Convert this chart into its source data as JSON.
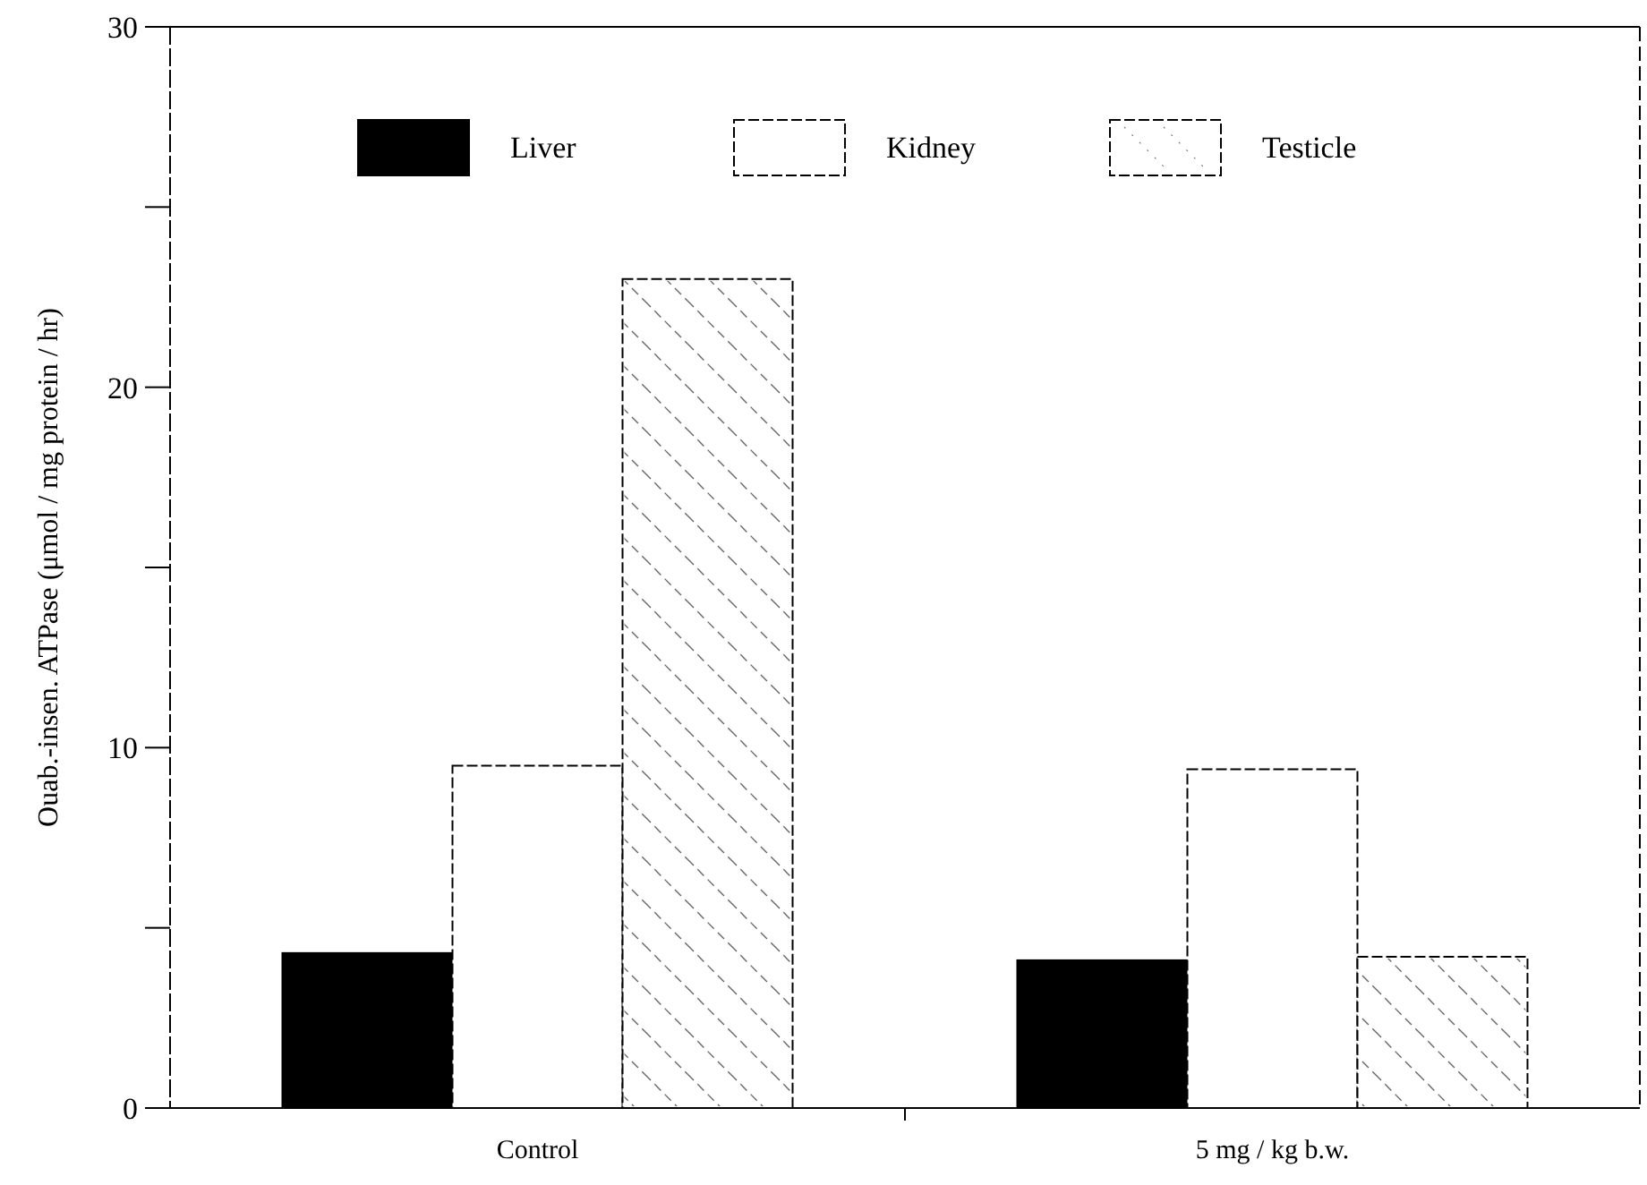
{
  "chart_data": {
    "type": "bar",
    "ylabel": "Ouab.-insen. ATPase (μmol / mg protein / hr)",
    "categories": [
      "Control",
      "5 mg / kg b.w."
    ],
    "series": [
      {
        "name": "Liver",
        "color": "#000000",
        "values": [
          4.3,
          4.1
        ]
      },
      {
        "name": "Kidney",
        "color": "#ffffff",
        "values": [
          9.5,
          9.4
        ]
      },
      {
        "name": "Testicle",
        "color": "#ffffff",
        "values": [
          23.0,
          4.2
        ]
      }
    ],
    "ylim": [
      0,
      30
    ],
    "yticks": [
      0,
      {
        "value": 5,
        "label": null
      },
      10,
      {
        "value": 15,
        "label": null
      },
      20,
      {
        "value": 25,
        "label": null
      },
      30
    ],
    "legend": "top",
    "grid": false
  }
}
